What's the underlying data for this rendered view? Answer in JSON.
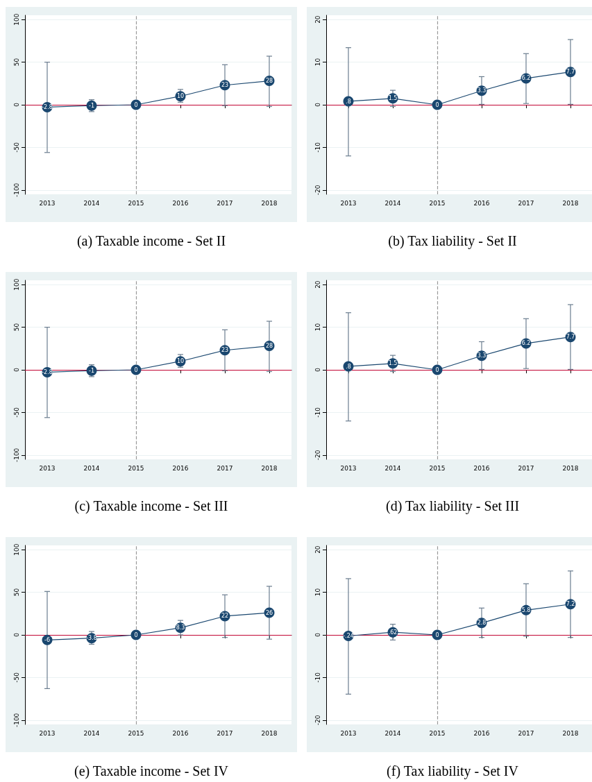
{
  "chart_data": [
    {
      "type": "line",
      "title": "(a) Taxable income - Set II",
      "categories": [
        "2013",
        "2014",
        "2015",
        "2016",
        "2017",
        "2018"
      ],
      "values": [
        -2.8,
        -1,
        0,
        10,
        23,
        28
      ],
      "value_labels": [
        "-2.8",
        "-1",
        "0",
        "10",
        "23",
        "28"
      ],
      "errors": [
        [
          -56,
          50
        ],
        [
          -8,
          6
        ],
        null,
        [
          3,
          18
        ],
        [
          -1,
          47
        ],
        [
          -2,
          57
        ]
      ],
      "color": "#1a476f",
      "ylim": [
        -105,
        105
      ],
      "yticks": [
        -100,
        -50,
        0,
        50,
        100
      ],
      "grid": "y",
      "marker": "circle",
      "ref_lines": [
        {
          "axis": "y",
          "value": 0,
          "color": "#c10534"
        },
        {
          "axis": "x",
          "value": "2015",
          "color": "#999999",
          "line_style": "dashed"
        }
      ]
    },
    {
      "type": "line",
      "title": "(b) Tax liability - Set II",
      "categories": [
        "2013",
        "2014",
        "2015",
        "2016",
        "2017",
        "2018"
      ],
      "values": [
        0.8,
        1.5,
        0,
        3.3,
        6.2,
        7.7
      ],
      "value_labels": [
        ".8",
        "1.5",
        "0",
        "3.3",
        "6.2",
        "7.7"
      ],
      "errors": [
        [
          -12,
          13.4
        ],
        [
          -0.4,
          3.4
        ],
        null,
        [
          0.1,
          6.6
        ],
        [
          0.3,
          12
        ],
        [
          0.1,
          15.3
        ]
      ],
      "color": "#1a476f",
      "ylim": [
        -21,
        21
      ],
      "yticks": [
        -20,
        -10,
        0,
        10,
        20
      ],
      "grid": "y",
      "marker": "circle",
      "ref_lines": [
        {
          "axis": "y",
          "value": 0,
          "color": "#c10534"
        },
        {
          "axis": "x",
          "value": "2015",
          "color": "#999999",
          "line_style": "dashed"
        }
      ]
    },
    {
      "type": "line",
      "title": "(c) Taxable income - Set III",
      "categories": [
        "2013",
        "2014",
        "2015",
        "2016",
        "2017",
        "2018"
      ],
      "values": [
        -2.8,
        -1,
        0,
        10,
        23,
        28
      ],
      "value_labels": [
        "-2.8",
        "-1",
        "0",
        "10",
        "23",
        "28"
      ],
      "errors": [
        [
          -56,
          50
        ],
        [
          -8,
          6
        ],
        null,
        [
          3,
          18
        ],
        [
          -1,
          47
        ],
        [
          -2,
          57
        ]
      ],
      "color": "#1a476f",
      "ylim": [
        -105,
        105
      ],
      "yticks": [
        -100,
        -50,
        0,
        50,
        100
      ],
      "grid": "y",
      "marker": "circle",
      "ref_lines": [
        {
          "axis": "y",
          "value": 0,
          "color": "#c10534"
        },
        {
          "axis": "x",
          "value": "2015",
          "color": "#999999",
          "line_style": "dashed"
        }
      ]
    },
    {
      "type": "line",
      "title": "(d) Tax liability - Set III",
      "categories": [
        "2013",
        "2014",
        "2015",
        "2016",
        "2017",
        "2018"
      ],
      "values": [
        0.8,
        1.5,
        0,
        3.3,
        6.2,
        7.7
      ],
      "value_labels": [
        ".8",
        "1.5",
        "0",
        "3.3",
        "6.2",
        "7.7"
      ],
      "errors": [
        [
          -12,
          13.4
        ],
        [
          -0.4,
          3.4
        ],
        null,
        [
          0.1,
          6.6
        ],
        [
          0.3,
          12
        ],
        [
          0.1,
          15.3
        ]
      ],
      "color": "#1a476f",
      "ylim": [
        -21,
        21
      ],
      "yticks": [
        -20,
        -10,
        0,
        10,
        20
      ],
      "grid": "y",
      "marker": "circle",
      "ref_lines": [
        {
          "axis": "y",
          "value": 0,
          "color": "#c10534"
        },
        {
          "axis": "x",
          "value": "2015",
          "color": "#999999",
          "line_style": "dashed"
        }
      ]
    },
    {
      "type": "line",
      "title": "(e) Taxable income - Set IV",
      "categories": [
        "2013",
        "2014",
        "2015",
        "2016",
        "2017",
        "2018"
      ],
      "values": [
        -6,
        -3.8,
        0,
        8.3,
        22,
        26
      ],
      "value_labels": [
        "-6",
        "-3.8",
        "0",
        "8.3",
        "22",
        "26"
      ],
      "errors": [
        [
          -63,
          51
        ],
        [
          -11,
          4
        ],
        null,
        [
          0,
          17
        ],
        [
          -3,
          47
        ],
        [
          -5,
          57
        ]
      ],
      "color": "#1a476f",
      "ylim": [
        -105,
        105
      ],
      "yticks": [
        -100,
        -50,
        0,
        50,
        100
      ],
      "grid": "y",
      "marker": "circle",
      "ref_lines": [
        {
          "axis": "y",
          "value": 0,
          "color": "#c10534"
        },
        {
          "axis": "x",
          "value": "2015",
          "color": "#999999",
          "line_style": "dashed"
        }
      ]
    },
    {
      "type": "line",
      "title": "(f) Tax liability - Set IV",
      "categories": [
        "2013",
        "2014",
        "2015",
        "2016",
        "2017",
        "2018"
      ],
      "values": [
        -0.24,
        0.62,
        0,
        2.8,
        5.8,
        7.2
      ],
      "value_labels": [
        "-.24",
        ".62",
        "0",
        "2.8",
        "5.8",
        "7.2"
      ],
      "errors": [
        [
          -13.9,
          13.2
        ],
        [
          -1.2,
          2.5
        ],
        null,
        [
          -0.6,
          6.3
        ],
        [
          -0.3,
          12
        ],
        [
          -0.6,
          15
        ]
      ],
      "color": "#1a476f",
      "ylim": [
        -21,
        21
      ],
      "yticks": [
        -20,
        -10,
        0,
        10,
        20
      ],
      "grid": "y",
      "marker": "circle",
      "ref_lines": [
        {
          "axis": "y",
          "value": 0,
          "color": "#c10534"
        },
        {
          "axis": "x",
          "value": "2015",
          "color": "#999999",
          "line_style": "dashed"
        }
      ]
    }
  ]
}
